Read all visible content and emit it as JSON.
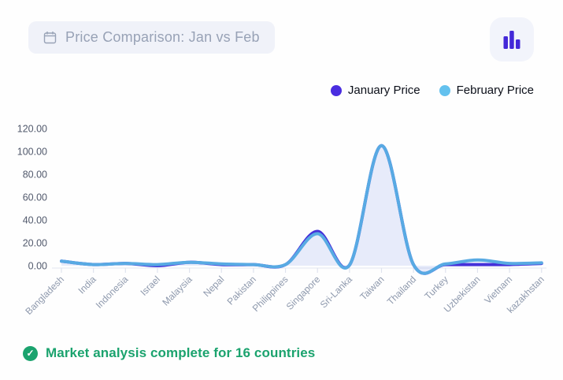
{
  "header": {
    "title": "Price Comparison: Jan vs Feb"
  },
  "toolbar": {
    "chart_type_button_icon": "bar-chart-icon"
  },
  "footer": {
    "status": "Market analysis complete for 16 countries",
    "check_glyph": "✓"
  },
  "colors": {
    "accent": "#4328d8",
    "success": "#1ba36e",
    "axis_line": "#e7eaf3",
    "tick": "#dfe3ee",
    "x_label": "#8e99ad",
    "y_label": "#51596c"
  },
  "chart_data": {
    "type": "line",
    "title": "Price Comparison: Jan vs Feb",
    "categories": [
      "Bangladesh",
      "India",
      "Indonesia",
      "Israel",
      "Malaysia",
      "Nepal",
      "Pakistan",
      "Philippines",
      "Singapore",
      "Sri-Lanka",
      "Taiwan",
      "Thailand",
      "Turkey",
      "Uzbekistan",
      "Vietnam",
      "kazakhstan"
    ],
    "series": [
      {
        "name": "January Price",
        "line_color": "#4530d9",
        "dot_color": "#4a2de0",
        "fill": "rgba(69,48,217,0.05)",
        "values": [
          4,
          1,
          2,
          0,
          3,
          1,
          1,
          1,
          30,
          0.5,
          105,
          1,
          1,
          1,
          1,
          2
        ]
      },
      {
        "name": "February Price",
        "line_color": "#58aae3",
        "dot_color": "#63c1ee",
        "fill": "rgba(105,170,235,0.10)",
        "values": [
          4,
          1,
          2,
          1,
          3,
          1.5,
          1,
          1,
          28,
          0.5,
          105,
          1,
          1.5,
          5,
          2,
          2.5
        ]
      }
    ],
    "xlabel": "",
    "ylabel": "",
    "ylim": [
      0,
      120
    ],
    "yticks": [
      0,
      20,
      40,
      60,
      80,
      100,
      120
    ],
    "ytick_decimals": 2,
    "grid": false,
    "legend_position": "top-right",
    "smooth": true
  }
}
